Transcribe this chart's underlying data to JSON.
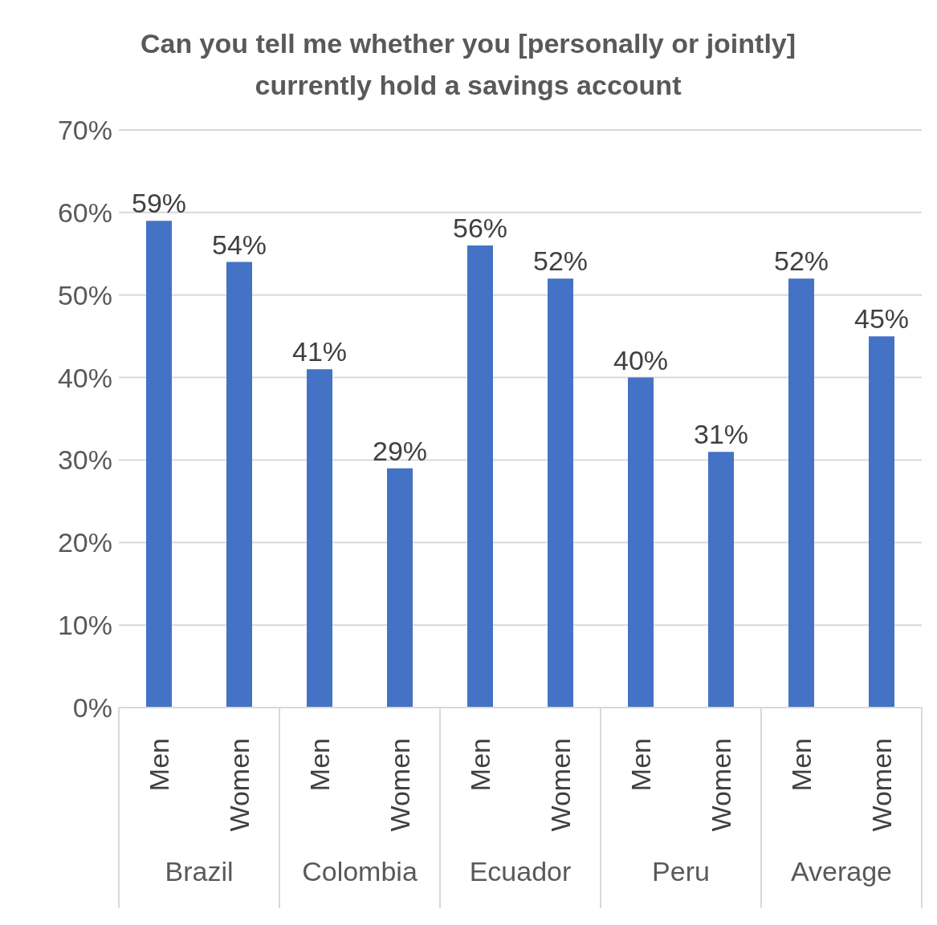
{
  "chart_data": {
    "type": "bar",
    "title": "Can you tell me whether you [personally or jointly] currently hold a savings account",
    "categories": [
      "Men",
      "Women",
      "Men",
      "Women",
      "Men",
      "Women",
      "Men",
      "Women",
      "Men",
      "Women"
    ],
    "values": [
      59,
      54,
      41,
      29,
      56,
      52,
      40,
      31,
      52,
      45
    ],
    "value_labels": [
      "59%",
      "54%",
      "41%",
      "29%",
      "56%",
      "52%",
      "40%",
      "31%",
      "52%",
      "45%"
    ],
    "color": "#4472c4",
    "ylim": [
      0,
      70
    ],
    "yticks": [
      {
        "value": 0,
        "label": "0%"
      },
      {
        "value": 10,
        "label": "10%"
      },
      {
        "value": 20,
        "label": "20%"
      },
      {
        "value": 30,
        "label": "30%"
      },
      {
        "value": 40,
        "label": "40%"
      },
      {
        "value": 50,
        "label": "50%"
      },
      {
        "value": 60,
        "label": "60%"
      },
      {
        "value": 70,
        "label": "70%"
      }
    ],
    "grid": "y",
    "annotations": [
      "Brazil",
      "Colombia",
      "Ecuador",
      "Peru",
      "Average"
    ]
  }
}
